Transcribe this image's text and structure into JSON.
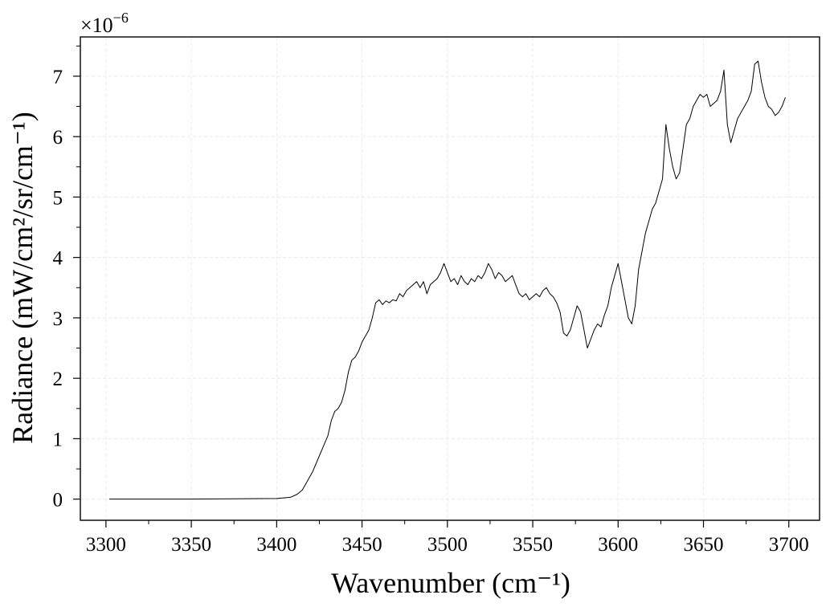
{
  "chart_data": {
    "type": "line",
    "xlabel": "Wavenumber (cm⁻¹)",
    "ylabel": "Radiance (mW/cm²/sr/cm⁻¹)",
    "y_multiplier": {
      "base": "×10",
      "exponent": "−6"
    },
    "xlim": [
      3285,
      3718
    ],
    "ylim": [
      -0.35,
      7.65
    ],
    "x_ticks": [
      3300,
      3350,
      3400,
      3450,
      3500,
      3550,
      3600,
      3650,
      3700
    ],
    "x_tick_labels": [
      "3300",
      "3350",
      "3400",
      "3450",
      "3500",
      "3550",
      "3600",
      "3650",
      "3700"
    ],
    "y_ticks": [
      0,
      1,
      2,
      3,
      4,
      5,
      6,
      7
    ],
    "y_tick_labels": [
      "0",
      "1",
      "2",
      "3",
      "4",
      "5",
      "6",
      "7"
    ],
    "grid": true,
    "line_color": "#000000",
    "series": [
      {
        "x": [
          3302,
          3350,
          3400,
          3408,
          3412,
          3415,
          3418,
          3421,
          3424,
          3427,
          3430,
          3432,
          3434,
          3436,
          3438,
          3440,
          3442,
          3444,
          3446,
          3448,
          3450,
          3452,
          3454,
          3456,
          3458,
          3460,
          3462,
          3464,
          3466,
          3468,
          3470,
          3472,
          3474,
          3476,
          3478,
          3480,
          3482,
          3484,
          3486,
          3488,
          3490,
          3492,
          3494,
          3496,
          3498,
          3500,
          3502,
          3504,
          3506,
          3508,
          3510,
          3512,
          3514,
          3516,
          3518,
          3520,
          3522,
          3524,
          3526,
          3528,
          3530,
          3532,
          3534,
          3536,
          3538,
          3540,
          3542,
          3544,
          3546,
          3548,
          3550,
          3552,
          3554,
          3556,
          3558,
          3560,
          3562,
          3564,
          3566,
          3568,
          3570,
          3572,
          3574,
          3576,
          3578,
          3580,
          3582,
          3584,
          3586,
          3588,
          3590,
          3592,
          3594,
          3596,
          3598,
          3600,
          3602,
          3604,
          3606,
          3608,
          3610,
          3612,
          3614,
          3616,
          3618,
          3620,
          3622,
          3624,
          3626,
          3628,
          3630,
          3632,
          3634,
          3636,
          3638,
          3640,
          3642,
          3644,
          3646,
          3648,
          3650,
          3652,
          3654,
          3656,
          3658,
          3660,
          3662,
          3664,
          3666,
          3668,
          3670,
          3672,
          3674,
          3676,
          3678,
          3680,
          3682,
          3684,
          3686,
          3688,
          3690,
          3692,
          3694,
          3696,
          3698
        ],
        "y": [
          0.0,
          0.0,
          0.01,
          0.03,
          0.08,
          0.15,
          0.3,
          0.45,
          0.65,
          0.85,
          1.05,
          1.3,
          1.45,
          1.5,
          1.6,
          1.8,
          2.1,
          2.3,
          2.35,
          2.45,
          2.6,
          2.7,
          2.8,
          3.0,
          3.25,
          3.3,
          3.22,
          3.28,
          3.25,
          3.3,
          3.28,
          3.4,
          3.35,
          3.45,
          3.5,
          3.55,
          3.6,
          3.5,
          3.6,
          3.4,
          3.55,
          3.6,
          3.65,
          3.75,
          3.9,
          3.75,
          3.6,
          3.65,
          3.55,
          3.7,
          3.6,
          3.55,
          3.65,
          3.6,
          3.7,
          3.65,
          3.75,
          3.9,
          3.8,
          3.65,
          3.75,
          3.7,
          3.6,
          3.65,
          3.7,
          3.55,
          3.4,
          3.35,
          3.4,
          3.3,
          3.35,
          3.4,
          3.35,
          3.45,
          3.5,
          3.4,
          3.35,
          3.25,
          3.1,
          2.75,
          2.7,
          2.8,
          3.0,
          3.2,
          3.1,
          2.8,
          2.5,
          2.65,
          2.8,
          2.9,
          2.85,
          3.05,
          3.2,
          3.5,
          3.7,
          3.9,
          3.6,
          3.3,
          3.0,
          2.9,
          3.2,
          3.8,
          4.1,
          4.4,
          4.6,
          4.8,
          4.9,
          5.1,
          5.3,
          6.2,
          5.8,
          5.5,
          5.3,
          5.4,
          5.8,
          6.2,
          6.3,
          6.5,
          6.6,
          6.7,
          6.65,
          6.7,
          6.5,
          6.55,
          6.6,
          6.75,
          7.1,
          6.2,
          5.9,
          6.1,
          6.3,
          6.4,
          6.5,
          6.6,
          6.75,
          7.2,
          7.25,
          6.9,
          6.65,
          6.5,
          6.45,
          6.35,
          6.4,
          6.5,
          6.65
        ]
      }
    ]
  }
}
